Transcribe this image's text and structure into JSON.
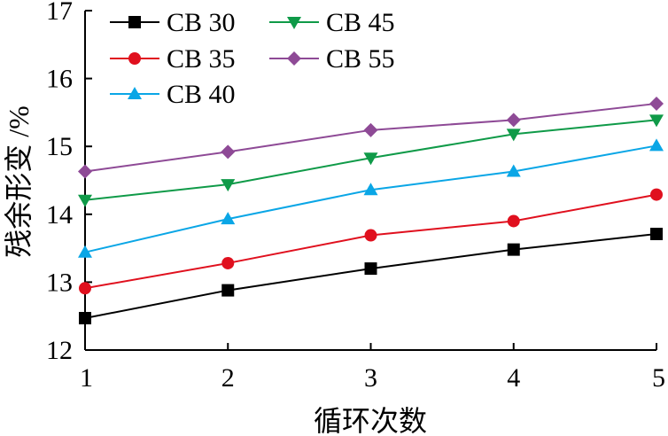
{
  "chart_data": {
    "type": "line",
    "xlabel": "循环次数",
    "ylabel": "残余形变 /%",
    "x": [
      1,
      2,
      3,
      4,
      5
    ],
    "xlim": [
      1,
      5
    ],
    "ylim": [
      12,
      17
    ],
    "x_ticks": [
      "1",
      "2",
      "3",
      "4",
      "5"
    ],
    "y_ticks": [
      "12",
      "13",
      "14",
      "15",
      "16",
      "17"
    ],
    "grid": false,
    "legend_position": "top-left",
    "series": [
      {
        "name": "CB 30",
        "color": "#000000",
        "marker": "square",
        "values": [
          12.47,
          12.88,
          13.2,
          13.48,
          13.71
        ]
      },
      {
        "name": "CB 35",
        "color": "#e0101e",
        "marker": "circle",
        "values": [
          12.91,
          13.28,
          13.69,
          13.9,
          14.29
        ]
      },
      {
        "name": "CB 40",
        "color": "#0aa6e6",
        "marker": "triangle-up",
        "values": [
          13.44,
          13.93,
          14.36,
          14.63,
          15.01
        ]
      },
      {
        "name": "CB 45",
        "color": "#0f9a48",
        "marker": "triangle-down",
        "values": [
          14.21,
          14.44,
          14.83,
          15.18,
          15.39
        ]
      },
      {
        "name": "CB 55",
        "color": "#8e4a96",
        "marker": "diamond",
        "values": [
          14.63,
          14.92,
          15.24,
          15.39,
          15.63
        ]
      }
    ]
  }
}
